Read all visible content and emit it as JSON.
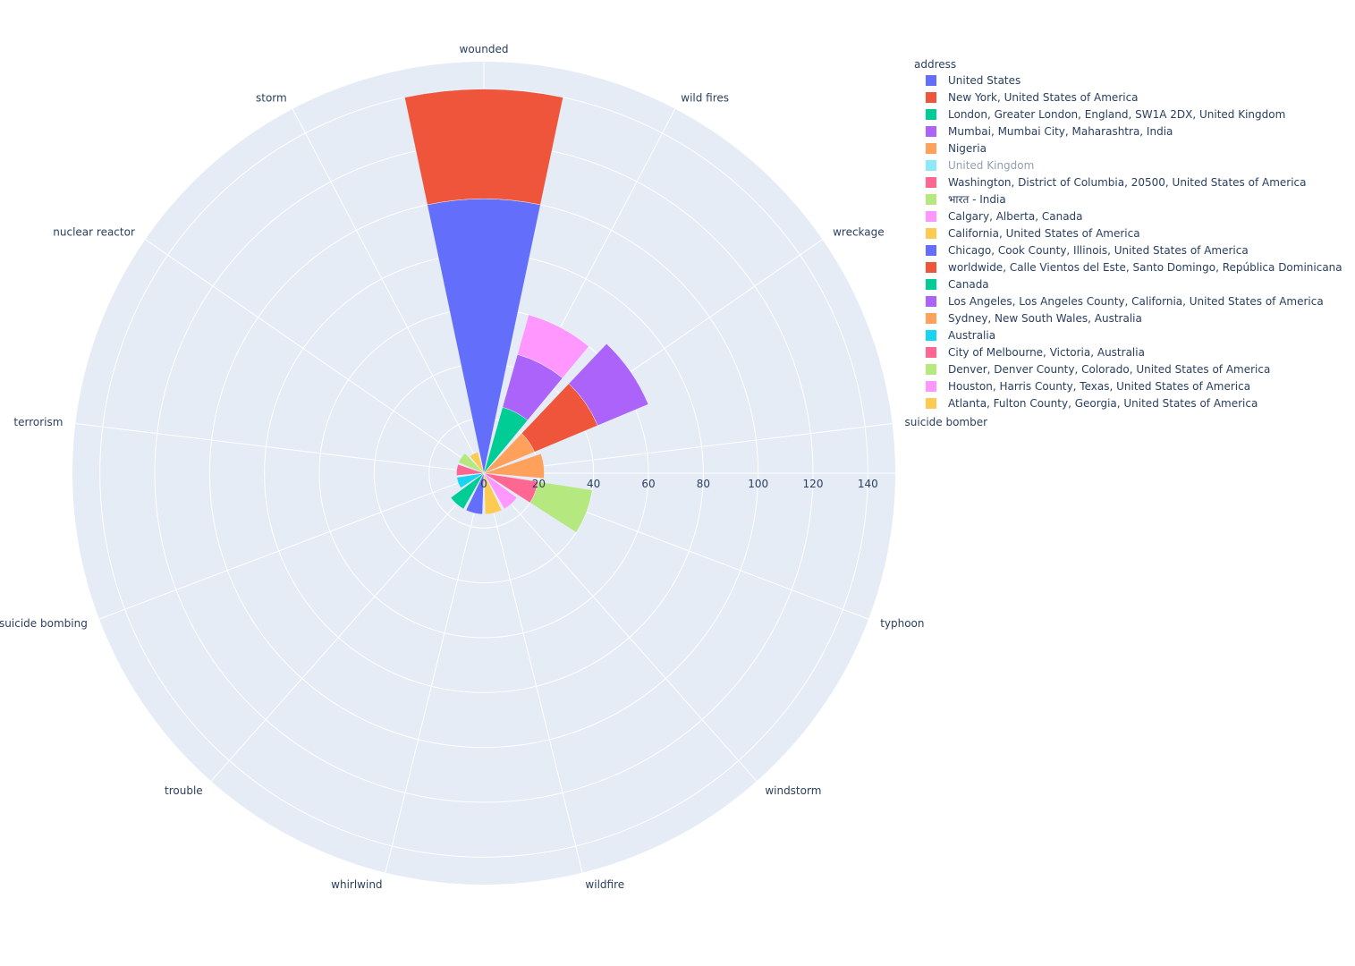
{
  "chart_data": {
    "type": "barpolar",
    "legend_title": "address",
    "legend_placement": "right",
    "radial_axis": {
      "range": [
        0,
        150
      ],
      "ticks": [
        "0",
        "20",
        "40",
        "60",
        "80",
        "100",
        "120",
        "140"
      ]
    },
    "angular_categories": [
      "wounded",
      "wild fires",
      "wreckage",
      "suicide bomber",
      "typhoon",
      "windstorm",
      "wildfire",
      "whirlwind",
      "trouble",
      "suicide bombing",
      "terrorism",
      "nuclear reactor",
      "storm"
    ],
    "grid": true,
    "background_color": "#e5ecf6",
    "series": [
      {
        "name": "United States",
        "color": "#636efa",
        "category": "wounded",
        "value": 100,
        "visible": true
      },
      {
        "name": "New York, United States of America",
        "color": "#EF553B",
        "category": "wounded",
        "value": 40,
        "visible": true
      },
      {
        "name": "London, Greater London, England, SW1A 2DX, United Kingdom",
        "color": "#00cc96",
        "category": "wild fires",
        "value": 25,
        "visible": true
      },
      {
        "name": "Mumbai, Mumbai City, Maharashtra, India",
        "color": "#ab63fa",
        "category": "wild fires",
        "value": 20,
        "visible": true
      },
      {
        "name": "Nigeria",
        "color": "#FFA15A",
        "category": "wreckage",
        "value": 20,
        "visible": true
      },
      {
        "name": "United Kingdom",
        "color": "#19d3f3",
        "category": "wreckage",
        "value": 0,
        "visible": false
      },
      {
        "name": "Washington, District of Columbia, 20500, United States of America",
        "color": "#FF6692",
        "category": "typhoon",
        "value": 20,
        "visible": true
      },
      {
        "name": "भारत - India",
        "color": "#B6E880",
        "category": "typhoon",
        "value": 20,
        "visible": true
      },
      {
        "name": "Calgary, Alberta, Canada",
        "color": "#FF97FF",
        "category": "wild fires",
        "value": 15,
        "visible": true
      },
      {
        "name": "California, United States of America",
        "color": "#FECB52",
        "category": "wildfire",
        "value": 15,
        "visible": true
      },
      {
        "name": "Chicago, Cook County, Illinois, United States of America",
        "color": "#636efa",
        "category": "whirlwind",
        "value": 15,
        "visible": true
      },
      {
        "name": "worldwide, Calle Vientos del Este, Santo Domingo, República Dominicana",
        "color": "#EF553B",
        "category": "wreckage",
        "value": 25,
        "visible": true
      },
      {
        "name": "Canada",
        "color": "#00cc96",
        "category": "trouble",
        "value": 15,
        "visible": true
      },
      {
        "name": "Los Angeles, Los Angeles County, California, United States of America",
        "color": "#ab63fa",
        "category": "wreckage",
        "value": 20,
        "visible": true
      },
      {
        "name": "Sydney, New South Wales, Australia",
        "color": "#FFA15A",
        "category": "suicide bomber",
        "value": 22,
        "visible": true
      },
      {
        "name": "Australia",
        "color": "#19d3f3",
        "category": "suicide bombing",
        "value": 10,
        "visible": true
      },
      {
        "name": "City of Melbourne, Victoria, Australia",
        "color": "#FF6692",
        "category": "terrorism",
        "value": 10,
        "visible": true
      },
      {
        "name": "Denver, Denver County, Colorado, United States of America",
        "color": "#B6E880",
        "category": "nuclear reactor",
        "value": 10,
        "visible": true
      },
      {
        "name": "Houston, Harris County, Texas, United States of America",
        "color": "#FF97FF",
        "category": "windstorm",
        "value": 15,
        "visible": true
      },
      {
        "name": "Atlanta, Fulton County, Georgia, United States of America",
        "color": "#FECB52",
        "category": "storm",
        "value": 8,
        "visible": true
      }
    ]
  }
}
